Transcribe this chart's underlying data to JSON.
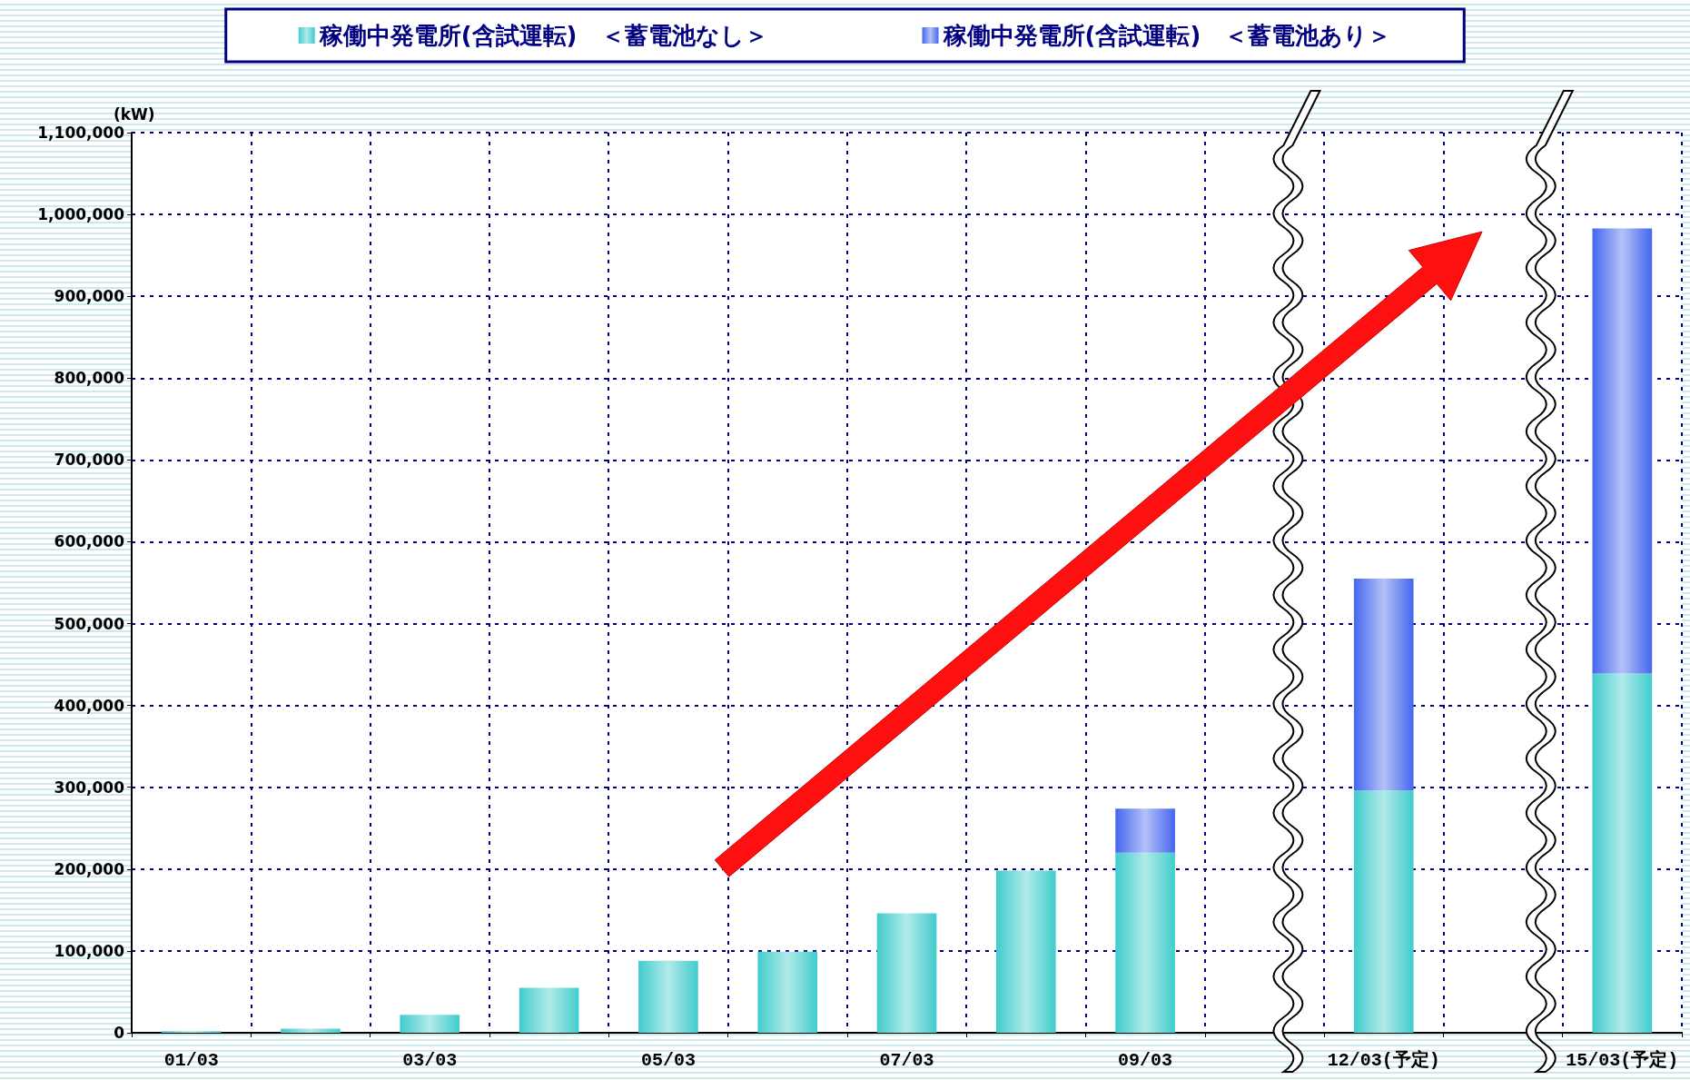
{
  "chart_data": {
    "type": "bar",
    "stacked": true,
    "ylabel": "(kW)",
    "categories": [
      "01/03",
      null,
      "03/03",
      null,
      "05/03",
      null,
      "07/03",
      null,
      "09/03",
      null,
      "12/03(予定)",
      null,
      "15/03(予定)"
    ],
    "series": [
      {
        "name": "稼働中発電所(含試運転)　＜蓄電池なし＞",
        "color": "#40cccc",
        "values": [
          2000,
          5000,
          22000,
          55000,
          88000,
          99000,
          146000,
          198000,
          220000,
          null,
          296000,
          null,
          439000
        ]
      },
      {
        "name": "稼働中発電所(含試運転)　＜蓄電池あり＞",
        "color": "#4466ee",
        "values": [
          null,
          null,
          null,
          null,
          null,
          null,
          null,
          null,
          54000,
          null,
          259000,
          null,
          544000
        ]
      }
    ],
    "ylim": [
      0,
      1100000
    ],
    "yticks": [
      0,
      {
        "value": 100000,
        "label": "100,000"
      },
      {
        "value": 200000,
        "label": "200,000"
      },
      {
        "value": 300000,
        "label": "300,000"
      },
      {
        "value": 400000,
        "label": "400,000"
      },
      {
        "value": 500000,
        "label": "500,000"
      },
      {
        "value": 600000,
        "label": "600,000"
      },
      {
        "value": 700000,
        "label": "700,000"
      },
      {
        "value": 800000,
        "label": "800,000"
      },
      {
        "value": 900000,
        "label": "900,000"
      },
      {
        "value": 1000000,
        "label": "1,000,000"
      },
      {
        "value": 1100000,
        "label": "1,100,000"
      }
    ],
    "grid": true,
    "legend": "top"
  }
}
